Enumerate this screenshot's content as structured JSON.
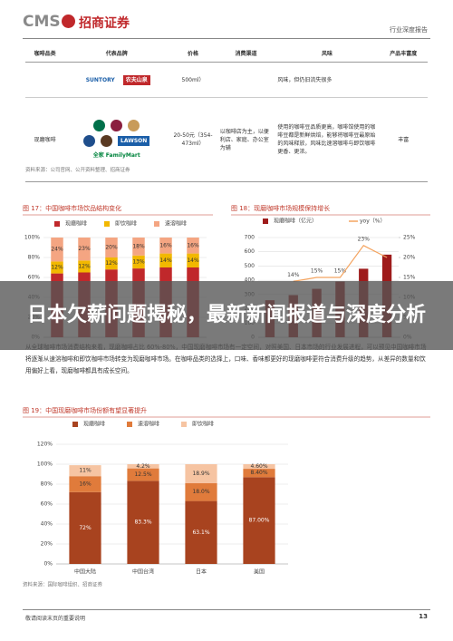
{
  "header": {
    "logo": "CMS",
    "company": "招商证券",
    "report_type": "行业深度报告"
  },
  "table": {
    "headers": [
      "咖啡品类",
      "代表品牌",
      "价格",
      "消费渠道",
      "风味",
      "产品丰富度"
    ],
    "rows": [
      {
        "brands": [
          "SUNTORY",
          "农夫山泉"
        ],
        "price": "500ml）",
        "flavor": "风味，但仍旧流失很多"
      },
      {
        "category": "现磨咖啡",
        "brands": [
          "LAWSON",
          "全家 FamilyMart"
        ],
        "price": "20-50元（354-473ml）",
        "channel": "以咖啡店为主，以便利店、家庭、办公室为辅",
        "flavor": "使用的咖啡豆品质更高，咖啡馆使用的咖啡豆都是新鲜烘焙，能够将咖啡豆最原始的风味释放，风味比速溶咖啡与即饮咖啡更香、更浓。",
        "richness": "丰富"
      }
    ],
    "source": "资料来源：公司官网、公开资料整理、招商证券"
  },
  "chart_data": [
    {
      "type": "bar",
      "stacked": true,
      "title": "图 17：中国咖啡市场饮品结构变化",
      "categories": [
        null,
        null,
        null,
        null,
        null,
        null
      ],
      "series": [
        {
          "name": "现磨咖啡",
          "color": "#c0282b",
          "values": [
            64,
            65,
            68,
            69,
            70,
            70
          ]
        },
        {
          "name": "即饮咖啡",
          "color": "#f2b800",
          "values": [
            12,
            12,
            12,
            13,
            14,
            14
          ],
          "value_labels": [
            "12%",
            "12%",
            "12%",
            "13%",
            "14%",
            "14%"
          ]
        },
        {
          "name": "速溶咖啡",
          "color": "#f4a582",
          "values": [
            24,
            23,
            20,
            18,
            16,
            16
          ],
          "value_labels": [
            "24%",
            "23%",
            "20%",
            "18%",
            "16%",
            "16%"
          ]
        }
      ],
      "ylim": [
        0,
        100
      ],
      "yticks": [
        {
          "value": 0,
          "label": "0%"
        },
        {
          "value": 20,
          "label": "20%"
        },
        {
          "value": 40,
          "label": "40%"
        },
        {
          "value": 60,
          "label": "60%"
        },
        {
          "value": 80,
          "label": "80%"
        },
        {
          "value": 100,
          "label": "100%"
        }
      ],
      "grid": true
    },
    {
      "type": "combo",
      "title": "图 18：现磨咖啡市场规模保持增长",
      "categories": [
        null,
        null,
        null,
        null,
        null,
        null
      ],
      "series": [
        {
          "name": "现磨咖啡（亿元）",
          "color": "#9e1b1b",
          "values": [
            260,
            296,
            340,
            391,
            481,
            580
          ]
        },
        {
          "name": "yoy（%）",
          "color": "#f4a460",
          "axis": "y2",
          "values": [
            null,
            14,
            15,
            15,
            23,
            20
          ],
          "value_labels": [
            null,
            "14%",
            "15%",
            "15%",
            "23%",
            null
          ]
        }
      ],
      "ylim": [
        0,
        700
      ],
      "yticks": [
        0,
        100,
        200,
        300,
        400,
        500,
        600,
        700
      ],
      "y2lim": [
        0,
        25
      ],
      "y2ticks": [
        {
          "value": 0,
          "label": "0%"
        },
        {
          "value": 5,
          "label": "5%"
        },
        {
          "value": 10,
          "label": "10%"
        },
        {
          "value": 15,
          "label": "15%"
        },
        {
          "value": 20,
          "label": "20%"
        },
        {
          "value": 25,
          "label": "25%"
        }
      ],
      "grid": true
    },
    {
      "type": "bar",
      "stacked": true,
      "title": "图 19：中国现磨咖啡市场份额有望显著提升",
      "categories": [
        "中国大陆",
        "中国台湾",
        "日本",
        "美国"
      ],
      "series": [
        {
          "name": "现磨咖啡",
          "color": "#a8431f",
          "values": [
            72,
            83.3,
            63.1,
            87
          ],
          "value_labels": [
            "72%",
            "83.3%",
            "63.1%",
            "87.00%"
          ]
        },
        {
          "name": "速溶咖啡",
          "color": "#e07b3b",
          "values": [
            16,
            12.5,
            18,
            8.4
          ],
          "value_labels": [
            "16%",
            "12.5%",
            "18.0%",
            "8.40%"
          ]
        },
        {
          "name": "即饮咖啡",
          "color": "#f6c4a2",
          "values": [
            11,
            4.2,
            18.9,
            4.6
          ],
          "value_labels": [
            "11%",
            "4.2%",
            "18.9%",
            "4.60%"
          ]
        }
      ],
      "ylim": [
        0,
        120
      ],
      "yticks": [
        {
          "value": 0,
          "label": "0%"
        },
        {
          "value": 20,
          "label": "20%"
        },
        {
          "value": 40,
          "label": "40%"
        },
        {
          "value": 60,
          "label": "60%"
        },
        {
          "value": 80,
          "label": "80%"
        },
        {
          "value": 100,
          "label": "100%"
        },
        {
          "value": 120,
          "label": "120%"
        }
      ],
      "grid": true,
      "source": "资料来源：国际咖啡组织、招商证券"
    }
  ],
  "overlay_title": "日本欠薪问题揭秘，最新新闻报道与深度分析",
  "body_text": "从全球咖啡市场消费结构来看，现磨咖啡占比 60%-80%，中国现磨咖啡市场有一定空间，对照美国、日本市场的行业发展进程，可以预见中国咖啡市场将逐渐从速溶咖啡和即饮咖啡市场转变为现磨咖啡市场。在咖啡品类的选择上，口味、香味都更好的现磨咖啡更符合消费升级的趋势，从差异的数量和饮用偏好上看，现磨咖啡都具有成长空间。",
  "footer": {
    "note": "敬请阅读末页的重要说明",
    "page": 13
  }
}
